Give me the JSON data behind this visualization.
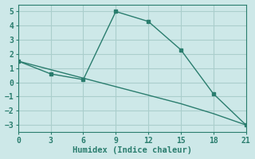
{
  "line1_x": [
    0,
    3,
    6,
    9,
    12,
    15,
    18,
    21
  ],
  "line1_y": [
    1.5,
    0.6,
    0.2,
    5.0,
    4.3,
    2.3,
    -0.8,
    -3.0
  ],
  "line2_x": [
    0,
    3,
    6,
    9,
    12,
    15,
    18,
    21
  ],
  "line2_y": [
    1.5,
    0.9,
    0.3,
    -0.3,
    -0.9,
    -1.5,
    -2.2,
    -3.0
  ],
  "line_color": "#2a7d6e",
  "bg_color": "#cde8e8",
  "grid_color": "#aacecc",
  "xlabel": "Humidex (Indice chaleur)",
  "xlim": [
    0,
    21
  ],
  "ylim": [
    -3.5,
    5.5
  ],
  "xticks": [
    0,
    3,
    6,
    9,
    12,
    15,
    18,
    21
  ],
  "yticks": [
    -3,
    -2,
    -1,
    0,
    1,
    2,
    3,
    4,
    5
  ],
  "xlabel_fontsize": 7.5,
  "tick_fontsize": 7
}
